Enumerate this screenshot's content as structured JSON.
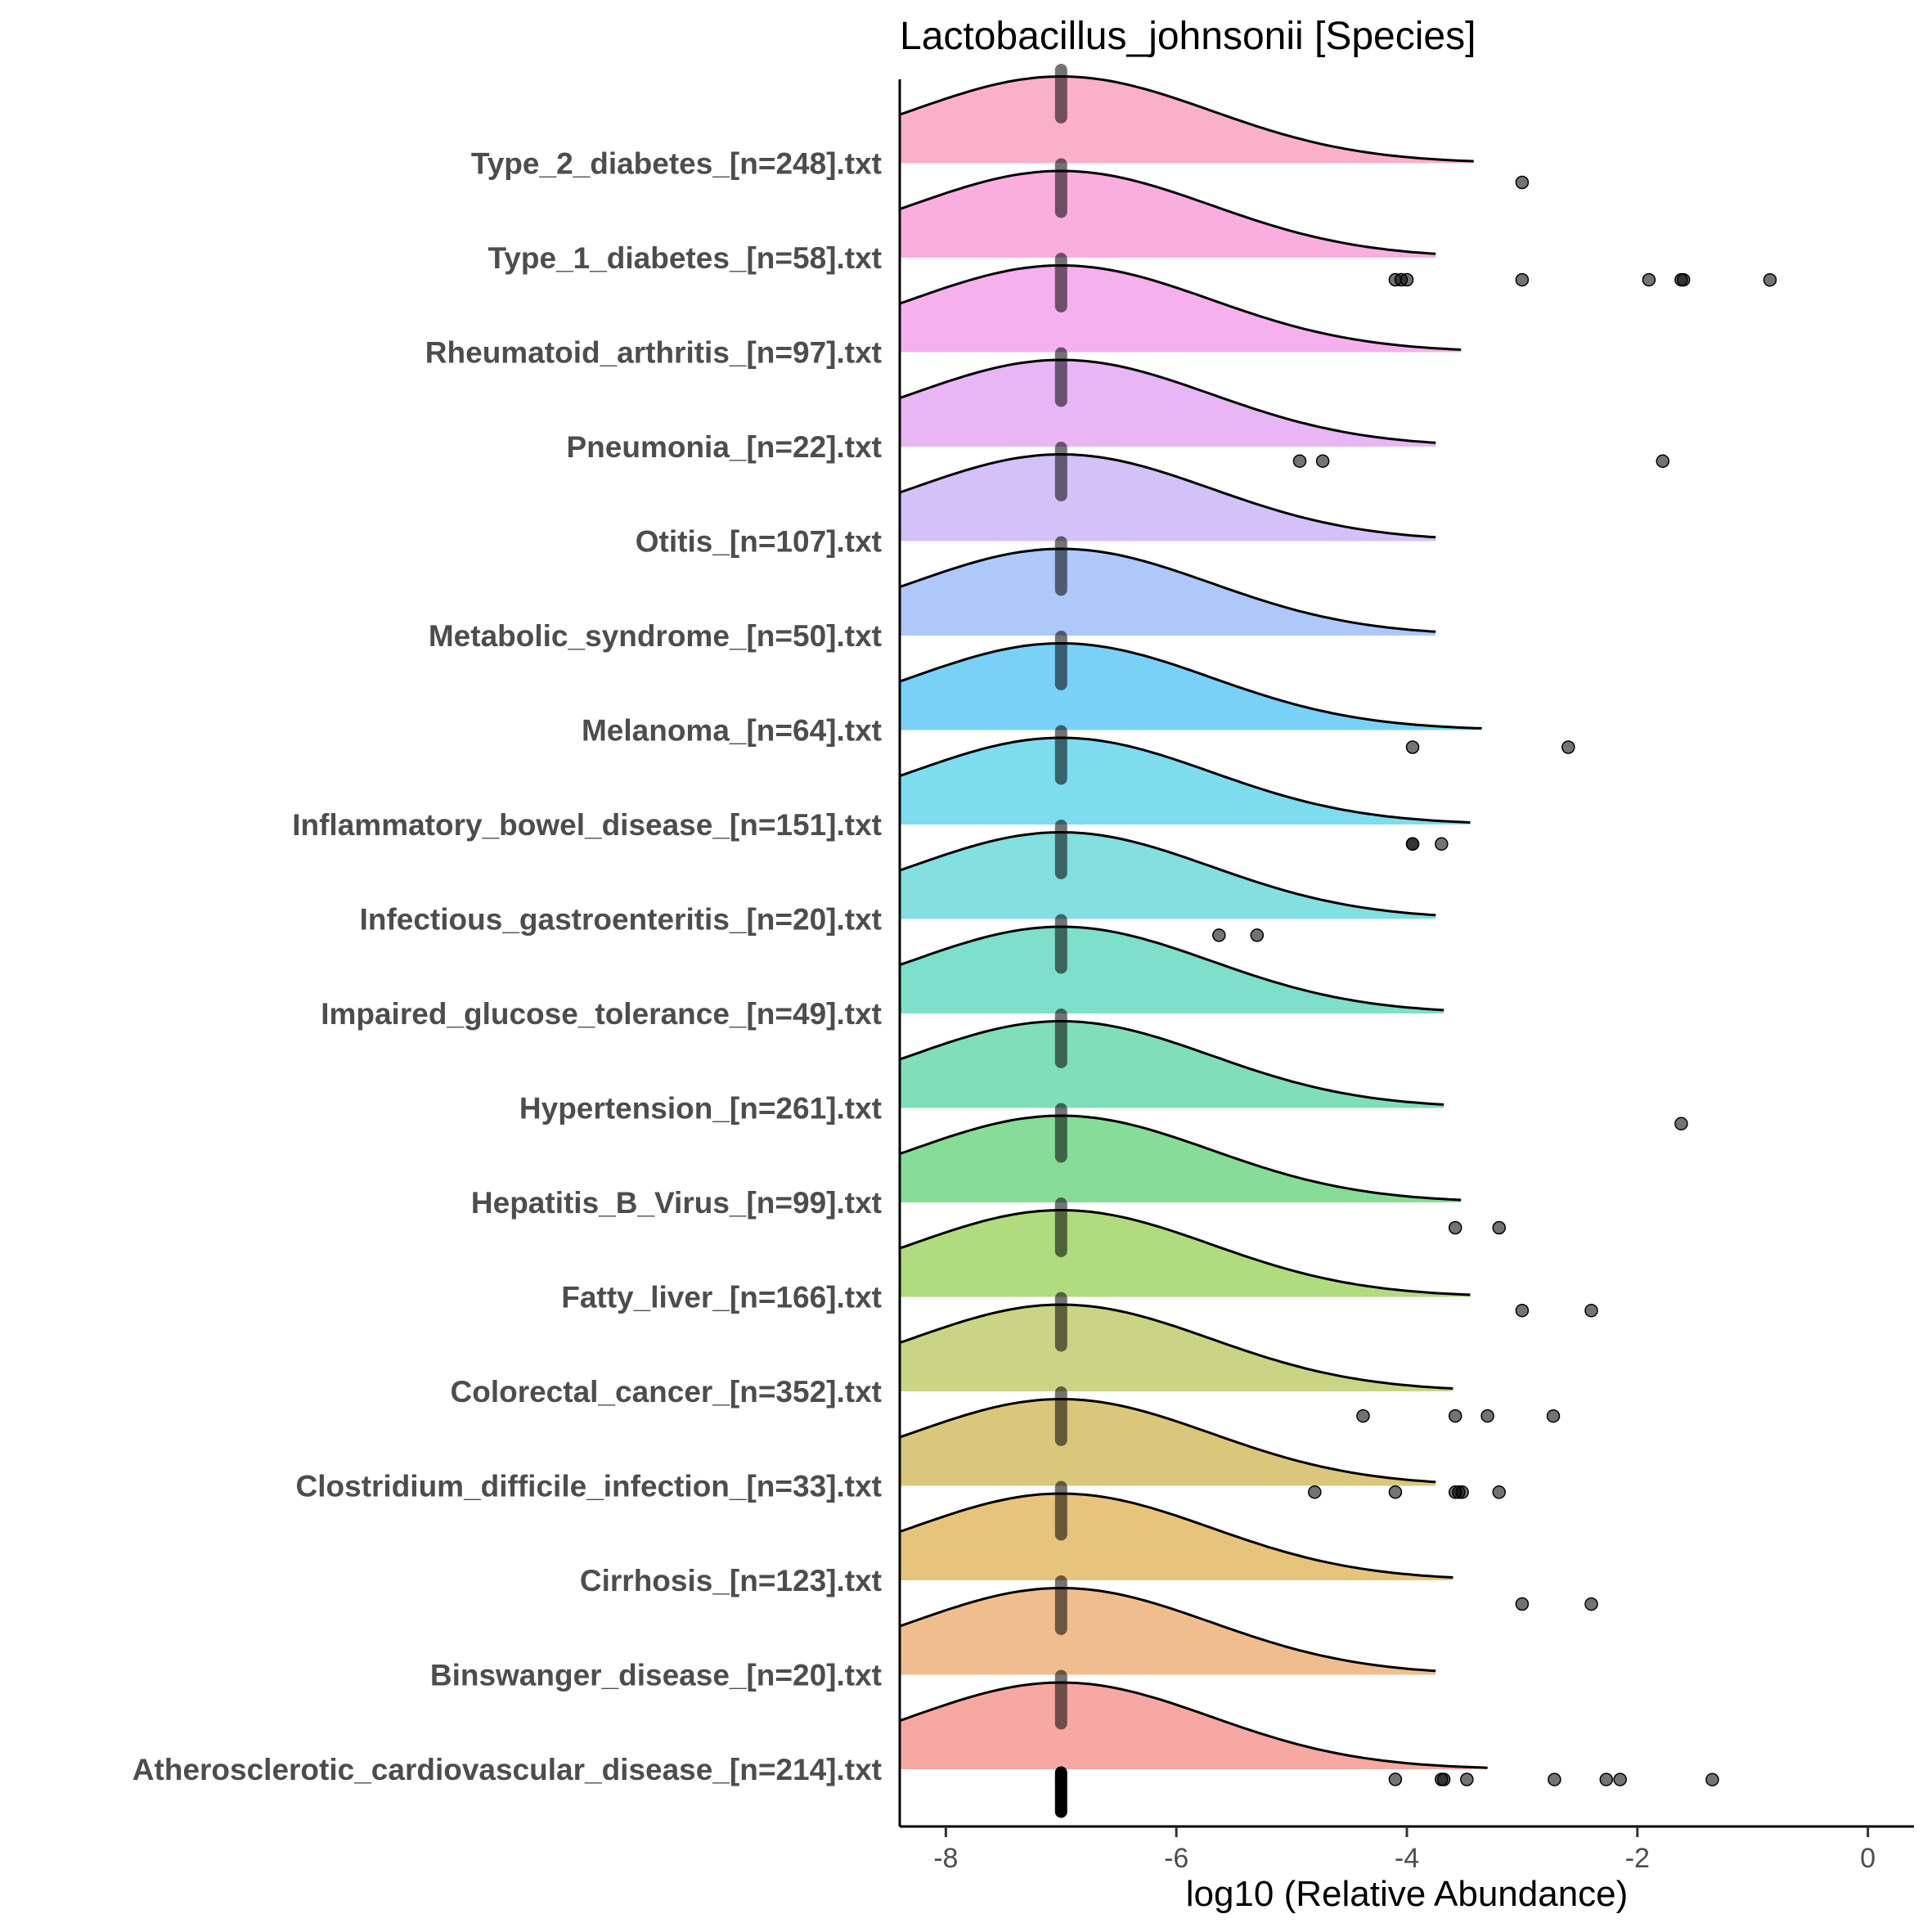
{
  "chart_data": {
    "type": "ridgeline",
    "title": "Lactobacillus_johnsonii [Species]",
    "xlabel": "log10 (Relative Abundance)",
    "ylabel": "",
    "xlim": [
      -8.4,
      0.4
    ],
    "xticks": [
      -8,
      -6,
      -4,
      -2,
      0
    ],
    "grid": false,
    "density": {
      "mode": -7.0,
      "sd": 1.3
    },
    "series": [
      {
        "name": "Atherosclerotic_cardiovascular_disease_[n=214].txt",
        "color": "#F8A8A2",
        "median": -7.0,
        "density_end": -3.3,
        "outliers": [
          -4.1,
          -3.7,
          -3.68,
          -3.48,
          -2.72,
          -2.27,
          -2.15,
          -1.35
        ]
      },
      {
        "name": "Binswanger_disease_[n=20].txt",
        "color": "#F0BE8E",
        "median": -7.0,
        "density_end": -3.75,
        "outliers": []
      },
      {
        "name": "Cirrhosis_[n=123].txt",
        "color": "#E7C47B",
        "median": -7.0,
        "density_end": -3.6,
        "outliers": [
          -3.0,
          -2.4
        ]
      },
      {
        "name": "Clostridium_difficile_infection_[n=33].txt",
        "color": "#DAC77C",
        "median": -7.0,
        "density_end": -3.75,
        "outliers": [
          -4.8,
          -4.1,
          -3.58,
          -3.55,
          -3.52,
          -3.2
        ]
      },
      {
        "name": "Colorectal_cancer_[n=352].txt",
        "color": "#C9D584",
        "median": -7.0,
        "density_end": -3.6,
        "outliers": [
          -4.38,
          -3.58,
          -3.3,
          -2.73
        ]
      },
      {
        "name": "Fatty_liver_[n=166].txt",
        "color": "#B0DB7E",
        "median": -7.0,
        "density_end": -3.45,
        "outliers": [
          -3.0,
          -2.4
        ]
      },
      {
        "name": "Hepatitis_B_Virus_[n=99].txt",
        "color": "#87DD98",
        "median": -7.0,
        "density_end": -3.53,
        "outliers": [
          -3.58,
          -3.2
        ]
      },
      {
        "name": "Hypertension_[n=261].txt",
        "color": "#80DFB8",
        "median": -7.0,
        "density_end": -3.68,
        "outliers": [
          -1.62
        ]
      },
      {
        "name": "Impaired_glucose_tolerance_[n=49].txt",
        "color": "#7EDFCA",
        "median": -7.0,
        "density_end": -3.68,
        "outliers": []
      },
      {
        "name": "Infectious_gastroenteritis_[n=20].txt",
        "color": "#83DFE0",
        "median": -7.0,
        "density_end": -3.75,
        "outliers": [
          -5.63,
          -5.3
        ]
      },
      {
        "name": "Inflammatory_bowel_disease_[n=151].txt",
        "color": "#7EDCEF",
        "median": -7.0,
        "density_end": -3.45,
        "outliers": [
          -3.95,
          -3.95,
          -3.7
        ]
      },
      {
        "name": "Melanoma_[n=64].txt",
        "color": "#7AD1F8",
        "median": -7.0,
        "density_end": -3.35,
        "outliers": [
          -3.95,
          -2.6
        ]
      },
      {
        "name": "Metabolic_syndrome_[n=50].txt",
        "color": "#ADC8F9",
        "median": -7.0,
        "density_end": -3.75,
        "outliers": []
      },
      {
        "name": "Otitis_[n=107].txt",
        "color": "#D4C1F8",
        "median": -7.0,
        "density_end": -3.75,
        "outliers": []
      },
      {
        "name": "Pneumonia_[n=22].txt",
        "color": "#E8B5F5",
        "median": -7.0,
        "density_end": -3.75,
        "outliers": [
          -4.93,
          -4.73,
          -1.78
        ]
      },
      {
        "name": "Rheumatoid_arthritis_[n=97].txt",
        "color": "#F6B0EE",
        "median": -7.0,
        "density_end": -3.53,
        "outliers": []
      },
      {
        "name": "Type_1_diabetes_[n=58].txt",
        "color": "#F9AEDF",
        "median": -7.0,
        "density_end": -3.75,
        "outliers": [
          -4.1,
          -4.05,
          -4.0,
          -3.0,
          -1.9,
          -1.62,
          -1.6,
          -0.85
        ]
      },
      {
        "name": "Type_2_diabetes_[n=248].txt",
        "color": "#FBB0C9",
        "median": -7.0,
        "density_end": -3.42,
        "outliers": [
          -3.0
        ]
      }
    ]
  }
}
